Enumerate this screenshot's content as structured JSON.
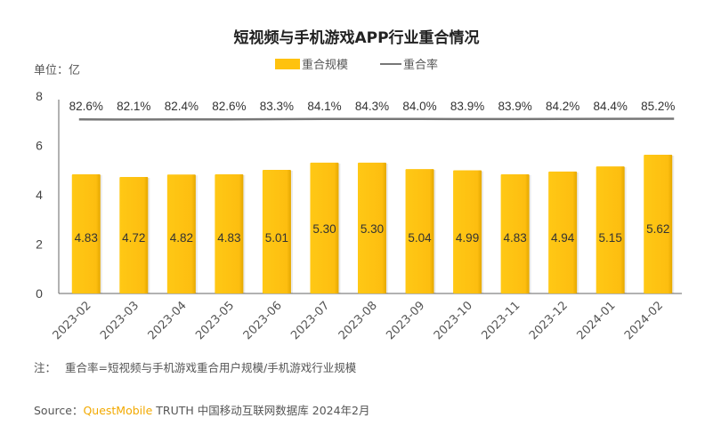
{
  "chart_data": {
    "type": "bar+line",
    "title": "短视频与手机游戏APP行业重合情况",
    "unit_label": "单位：亿",
    "xlabel": "",
    "ylabel": "亿",
    "ylim": [
      0,
      8
    ],
    "yticks": [
      0,
      2,
      4,
      6,
      8
    ],
    "grid": false,
    "legend_position": "top",
    "categories": [
      "2023-02",
      "2023-03",
      "2023-04",
      "2023-05",
      "2023-06",
      "2023-07",
      "2023-08",
      "2023-09",
      "2023-10",
      "2023-11",
      "2023-12",
      "2024-01",
      "2024-02"
    ],
    "series": [
      {
        "name": "重合规模",
        "type": "bar",
        "color": "#FFC20E",
        "values": [
          4.83,
          4.72,
          4.82,
          4.83,
          5.01,
          5.3,
          5.3,
          5.04,
          4.99,
          4.83,
          4.94,
          5.15,
          5.62
        ]
      },
      {
        "name": "重合率",
        "type": "line",
        "color": "#777777",
        "unit": "%",
        "values": [
          82.6,
          82.1,
          82.4,
          82.6,
          83.3,
          84.1,
          84.3,
          84.0,
          83.9,
          83.9,
          84.2,
          84.4,
          85.2
        ],
        "labels": [
          "82.6%",
          "82.1%",
          "82.4%",
          "82.6%",
          "83.3%",
          "84.1%",
          "84.3%",
          "84.0%",
          "83.9%",
          "83.9%",
          "84.2%",
          "84.4%",
          "85.2%"
        ]
      }
    ]
  },
  "header": {
    "title": "短视频与手机游戏APP行业重合情况",
    "unit": "单位：亿"
  },
  "legend": {
    "bar_label": "重合规模",
    "line_label": "重合率"
  },
  "footer": {
    "note_label": "注：",
    "note_text": "重合率=短视频与手机游戏重合用户规模/手机游戏行业规模",
    "source_label": "Source：",
    "source_brand": "QuestMobile",
    "source_text": " TRUTH 中国移动互联网数据库 2024年2月"
  }
}
